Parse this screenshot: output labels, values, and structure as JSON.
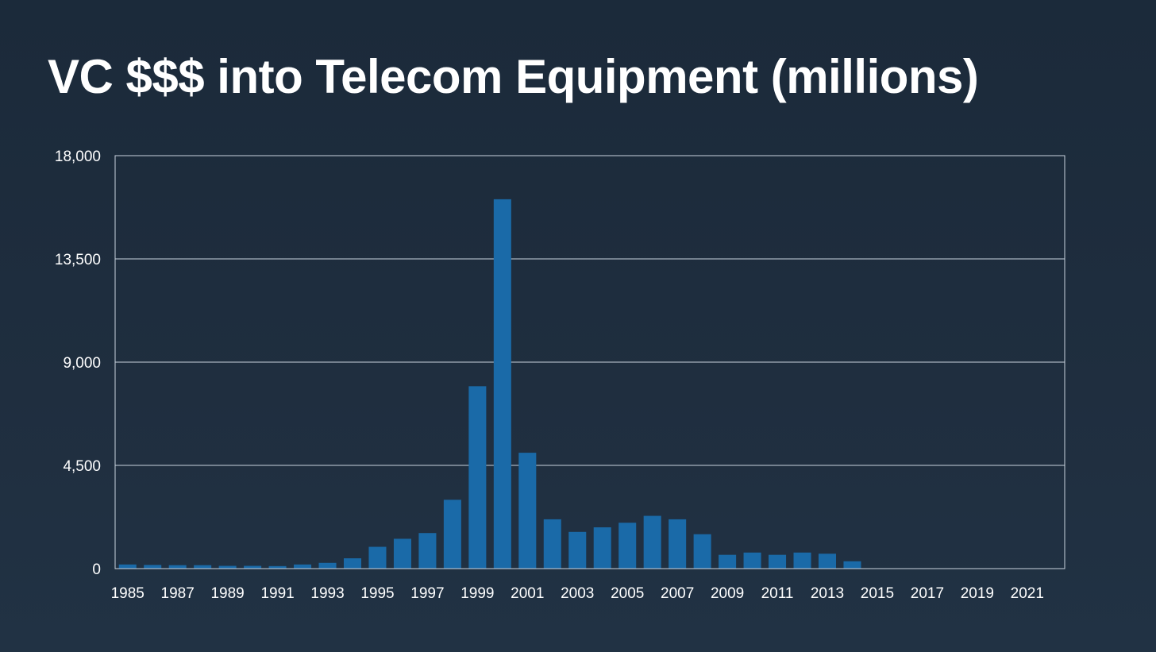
{
  "title": "VC $$$ into Telecom Equipment (millions)",
  "colors": {
    "bar": "#1a6aa8",
    "grid": "#c9d3de",
    "text": "#ffffff"
  },
  "chart_data": {
    "type": "bar",
    "title": "VC $$$ into Telecom Equipment (millions)",
    "xlabel": "",
    "ylabel": "",
    "ylim": [
      0,
      18000
    ],
    "y_ticks": [
      0,
      4500,
      9000,
      13500,
      18000
    ],
    "y_tick_labels": [
      "0",
      "4,500",
      "9,000",
      "13,500",
      "18,000"
    ],
    "x_tick_labels": [
      "1985",
      "1987",
      "1989",
      "1991",
      "1993",
      "1995",
      "1997",
      "1999",
      "2001",
      "2003",
      "2005",
      "2007",
      "2009",
      "2011",
      "2013",
      "2015",
      "2017",
      "2019",
      "2021"
    ],
    "grid": true,
    "categories": [
      "1985",
      "1986",
      "1987",
      "1988",
      "1989",
      "1990",
      "1991",
      "1992",
      "1993",
      "1994",
      "1995",
      "1996",
      "1997",
      "1998",
      "1999",
      "2000",
      "2001",
      "2002",
      "2003",
      "2004",
      "2005",
      "2006",
      "2007",
      "2008",
      "2009",
      "2010",
      "2011",
      "2012",
      "2013",
      "2014",
      "2015",
      "2016",
      "2017",
      "2018",
      "2019",
      "2020",
      "2021",
      "2022"
    ],
    "values": [
      180,
      160,
      150,
      150,
      120,
      120,
      110,
      180,
      250,
      450,
      950,
      1300,
      1550,
      3000,
      7950,
      16100,
      5050,
      2150,
      1600,
      1800,
      2000,
      2300,
      2150,
      1500,
      600,
      700,
      600,
      700,
      650,
      320,
      0,
      0,
      0,
      0,
      0,
      0,
      0,
      0
    ]
  }
}
